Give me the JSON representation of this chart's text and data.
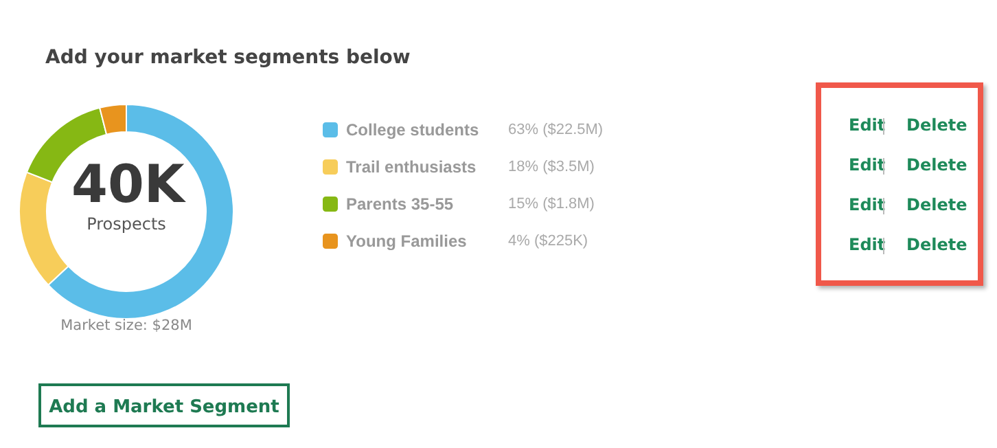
{
  "chart_data": {
    "type": "donut",
    "title": "Add your market segments below",
    "categories": [
      "College students",
      "Trail enthusiasts",
      "Parents 35-55",
      "Young Families"
    ],
    "values": [
      63,
      18,
      15,
      4
    ],
    "colors": [
      "#5bbde8",
      "#f7cd5a",
      "#86b814",
      "#e8941e"
    ],
    "value_labels": [
      "63% ($22.5M)",
      "18% ($3.5M)",
      "15% ($1.8M)",
      "4% ($225K)"
    ],
    "legend": "right",
    "annotations": [
      "40K",
      "Prospects",
      "Market size: $28M",
      "Add a Market Segment",
      "Edit",
      "Delete",
      "Edit",
      "Delete",
      "Edit",
      "Delete",
      "Edit",
      "Delete"
    ]
  }
}
